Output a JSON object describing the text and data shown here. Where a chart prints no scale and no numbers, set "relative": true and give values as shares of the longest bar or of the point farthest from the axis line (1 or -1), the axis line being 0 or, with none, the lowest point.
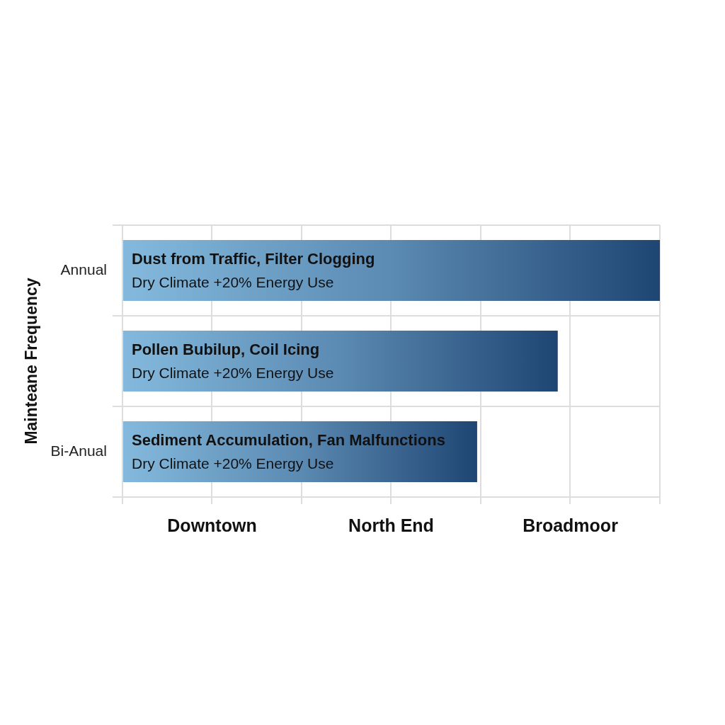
{
  "chart_data": {
    "type": "bar",
    "orientation": "horizontal",
    "relative": true,
    "ylabel": "Mainteane Frequency",
    "categories": [
      "Annual",
      null,
      "Bi-Anual"
    ],
    "values": [
      1,
      0.81,
      0.66
    ],
    "color": "#1f4673",
    "annotations": [
      "Dust from Traffic, Filter Clogging",
      "Dry Climate +20% Energy Use",
      "Pollen Bubilup, Coil Icing",
      "Dry Climate +20% Energy Use",
      "Sediment Accumulation, Fan Malfunctions",
      "Dry Climate +20% Energy Use",
      "Downtown",
      "North End",
      "Broadmoor"
    ],
    "grid": true
  }
}
